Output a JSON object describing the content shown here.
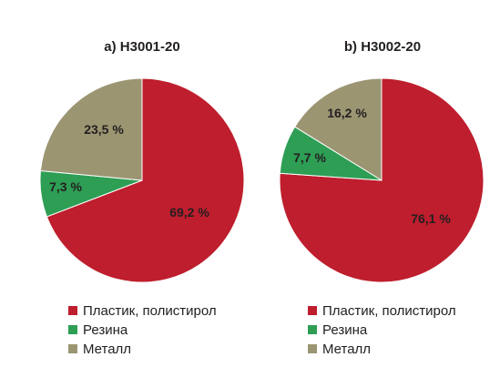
{
  "chart_data": [
    {
      "type": "pie",
      "title": "a) H3001-20",
      "categories": [
        "Пластик, полистирол",
        "Резина",
        "Металл"
      ],
      "values": [
        69.2,
        7.3,
        23.5
      ],
      "labels": [
        "69,2 %",
        "7,3 %",
        "23,5 %"
      ],
      "colors": [
        "#be1e2d",
        "#2e9e55",
        "#9b9572"
      ],
      "legend_placement": "bottom"
    },
    {
      "type": "pie",
      "title": "b) H3002-20",
      "categories": [
        "Пластик, полистирол",
        "Резина",
        "Металл"
      ],
      "values": [
        76.1,
        7.7,
        16.2
      ],
      "labels": [
        "76,1 %",
        "7,7 %",
        "16,2 %"
      ],
      "colors": [
        "#be1e2d",
        "#2e9e55",
        "#9b9572"
      ],
      "legend_placement": "bottom"
    }
  ]
}
